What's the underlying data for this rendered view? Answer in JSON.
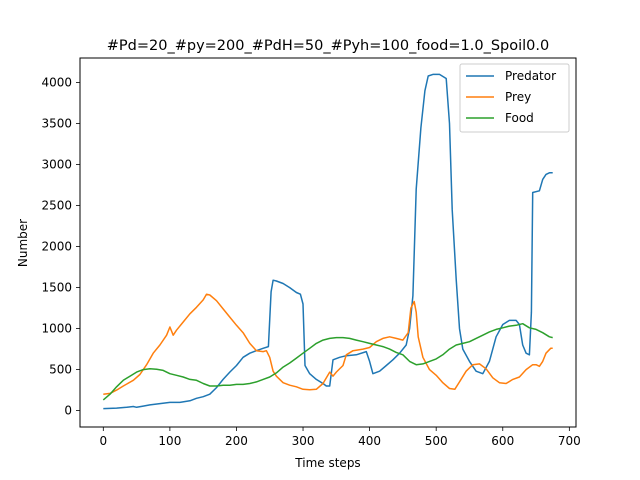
{
  "chart_data": {
    "type": "line",
    "title": "#Pd=20_#py=200_#PdH=50_#Pyh=100_food=1.0_Spoil0.0",
    "xlabel": "Time steps",
    "ylabel": "Number",
    "xlim": [
      -35,
      710
    ],
    "ylim": [
      -200,
      4300
    ],
    "xticks": [
      0,
      100,
      200,
      300,
      400,
      500,
      600,
      700
    ],
    "yticks": [
      0,
      500,
      1000,
      1500,
      2000,
      2500,
      3000,
      3500,
      4000
    ],
    "grid": false,
    "legend_position": "top-right",
    "colors": {
      "Predator": "#1f77b4",
      "Prey": "#ff7f0e",
      "Food": "#2ca02c"
    },
    "series": [
      {
        "name": "Predator",
        "points": [
          [
            0,
            25
          ],
          [
            20,
            30
          ],
          [
            35,
            40
          ],
          [
            45,
            50
          ],
          [
            50,
            40
          ],
          [
            60,
            55
          ],
          [
            70,
            70
          ],
          [
            85,
            85
          ],
          [
            100,
            100
          ],
          [
            115,
            100
          ],
          [
            130,
            120
          ],
          [
            140,
            150
          ],
          [
            150,
            170
          ],
          [
            160,
            200
          ],
          [
            170,
            280
          ],
          [
            180,
            380
          ],
          [
            190,
            470
          ],
          [
            200,
            550
          ],
          [
            210,
            650
          ],
          [
            220,
            700
          ],
          [
            230,
            730
          ],
          [
            240,
            760
          ],
          [
            248,
            780
          ],
          [
            252,
            1450
          ],
          [
            255,
            1590
          ],
          [
            260,
            1580
          ],
          [
            270,
            1550
          ],
          [
            280,
            1500
          ],
          [
            290,
            1440
          ],
          [
            296,
            1420
          ],
          [
            300,
            1300
          ],
          [
            303,
            550
          ],
          [
            310,
            450
          ],
          [
            320,
            380
          ],
          [
            330,
            330
          ],
          [
            335,
            300
          ],
          [
            340,
            300
          ],
          [
            345,
            620
          ],
          [
            355,
            650
          ],
          [
            365,
            670
          ],
          [
            380,
            680
          ],
          [
            395,
            720
          ],
          [
            400,
            600
          ],
          [
            405,
            450
          ],
          [
            415,
            480
          ],
          [
            425,
            550
          ],
          [
            435,
            620
          ],
          [
            445,
            700
          ],
          [
            455,
            800
          ],
          [
            460,
            1000
          ],
          [
            465,
            1400
          ],
          [
            470,
            2700
          ],
          [
            477,
            3450
          ],
          [
            483,
            3900
          ],
          [
            488,
            4080
          ],
          [
            495,
            4100
          ],
          [
            505,
            4100
          ],
          [
            515,
            4050
          ],
          [
            520,
            3500
          ],
          [
            524,
            2450
          ],
          [
            530,
            1600
          ],
          [
            535,
            1000
          ],
          [
            540,
            750
          ],
          [
            550,
            600
          ],
          [
            560,
            480
          ],
          [
            570,
            450
          ],
          [
            580,
            600
          ],
          [
            590,
            900
          ],
          [
            600,
            1050
          ],
          [
            610,
            1100
          ],
          [
            620,
            1100
          ],
          [
            625,
            1050
          ],
          [
            630,
            800
          ],
          [
            635,
            700
          ],
          [
            640,
            680
          ],
          [
            643,
            1200
          ],
          [
            645,
            2660
          ],
          [
            655,
            2680
          ],
          [
            660,
            2820
          ],
          [
            665,
            2880
          ],
          [
            670,
            2900
          ],
          [
            675,
            2900
          ]
        ]
      },
      {
        "name": "Prey",
        "points": [
          [
            0,
            200
          ],
          [
            10,
            210
          ],
          [
            20,
            250
          ],
          [
            30,
            300
          ],
          [
            45,
            370
          ],
          [
            55,
            440
          ],
          [
            65,
            560
          ],
          [
            75,
            700
          ],
          [
            85,
            800
          ],
          [
            95,
            920
          ],
          [
            100,
            1020
          ],
          [
            105,
            920
          ],
          [
            110,
            980
          ],
          [
            120,
            1080
          ],
          [
            130,
            1180
          ],
          [
            140,
            1260
          ],
          [
            150,
            1350
          ],
          [
            155,
            1420
          ],
          [
            160,
            1410
          ],
          [
            170,
            1340
          ],
          [
            180,
            1240
          ],
          [
            190,
            1140
          ],
          [
            200,
            1040
          ],
          [
            210,
            950
          ],
          [
            220,
            820
          ],
          [
            230,
            730
          ],
          [
            240,
            720
          ],
          [
            245,
            730
          ],
          [
            250,
            650
          ],
          [
            255,
            480
          ],
          [
            260,
            420
          ],
          [
            270,
            340
          ],
          [
            280,
            310
          ],
          [
            290,
            290
          ],
          [
            300,
            260
          ],
          [
            310,
            255
          ],
          [
            320,
            260
          ],
          [
            330,
            330
          ],
          [
            340,
            470
          ],
          [
            345,
            420
          ],
          [
            350,
            470
          ],
          [
            360,
            550
          ],
          [
            365,
            680
          ],
          [
            375,
            730
          ],
          [
            390,
            750
          ],
          [
            400,
            770
          ],
          [
            410,
            840
          ],
          [
            420,
            880
          ],
          [
            430,
            900
          ],
          [
            440,
            880
          ],
          [
            450,
            860
          ],
          [
            458,
            950
          ],
          [
            462,
            1250
          ],
          [
            467,
            1330
          ],
          [
            470,
            1200
          ],
          [
            473,
            900
          ],
          [
            480,
            650
          ],
          [
            490,
            500
          ],
          [
            500,
            430
          ],
          [
            510,
            340
          ],
          [
            520,
            270
          ],
          [
            528,
            260
          ],
          [
            535,
            350
          ],
          [
            545,
            480
          ],
          [
            555,
            560
          ],
          [
            565,
            570
          ],
          [
            575,
            510
          ],
          [
            585,
            400
          ],
          [
            595,
            340
          ],
          [
            605,
            330
          ],
          [
            615,
            380
          ],
          [
            625,
            410
          ],
          [
            635,
            500
          ],
          [
            645,
            560
          ],
          [
            650,
            560
          ],
          [
            655,
            540
          ],
          [
            660,
            600
          ],
          [
            665,
            700
          ],
          [
            672,
            760
          ],
          [
            675,
            760
          ]
        ]
      },
      {
        "name": "Food",
        "points": [
          [
            0,
            130
          ],
          [
            10,
            200
          ],
          [
            20,
            290
          ],
          [
            30,
            370
          ],
          [
            40,
            420
          ],
          [
            50,
            470
          ],
          [
            60,
            500
          ],
          [
            70,
            510
          ],
          [
            80,
            505
          ],
          [
            90,
            490
          ],
          [
            100,
            450
          ],
          [
            110,
            430
          ],
          [
            120,
            410
          ],
          [
            130,
            380
          ],
          [
            140,
            370
          ],
          [
            150,
            330
          ],
          [
            160,
            300
          ],
          [
            170,
            300
          ],
          [
            180,
            310
          ],
          [
            190,
            310
          ],
          [
            200,
            320
          ],
          [
            210,
            320
          ],
          [
            220,
            330
          ],
          [
            230,
            350
          ],
          [
            240,
            380
          ],
          [
            250,
            410
          ],
          [
            260,
            460
          ],
          [
            270,
            530
          ],
          [
            280,
            580
          ],
          [
            290,
            640
          ],
          [
            300,
            700
          ],
          [
            310,
            760
          ],
          [
            320,
            820
          ],
          [
            330,
            860
          ],
          [
            340,
            880
          ],
          [
            350,
            890
          ],
          [
            360,
            890
          ],
          [
            370,
            880
          ],
          [
            380,
            860
          ],
          [
            390,
            840
          ],
          [
            400,
            820
          ],
          [
            410,
            800
          ],
          [
            420,
            780
          ],
          [
            430,
            750
          ],
          [
            440,
            710
          ],
          [
            450,
            680
          ],
          [
            460,
            600
          ],
          [
            470,
            560
          ],
          [
            480,
            570
          ],
          [
            490,
            600
          ],
          [
            500,
            630
          ],
          [
            510,
            680
          ],
          [
            520,
            750
          ],
          [
            530,
            800
          ],
          [
            540,
            820
          ],
          [
            550,
            840
          ],
          [
            560,
            880
          ],
          [
            570,
            920
          ],
          [
            580,
            960
          ],
          [
            590,
            990
          ],
          [
            600,
            1010
          ],
          [
            610,
            1030
          ],
          [
            620,
            1040
          ],
          [
            630,
            1060
          ],
          [
            640,
            1010
          ],
          [
            650,
            990
          ],
          [
            660,
            950
          ],
          [
            670,
            900
          ],
          [
            675,
            890
          ]
        ]
      }
    ]
  }
}
